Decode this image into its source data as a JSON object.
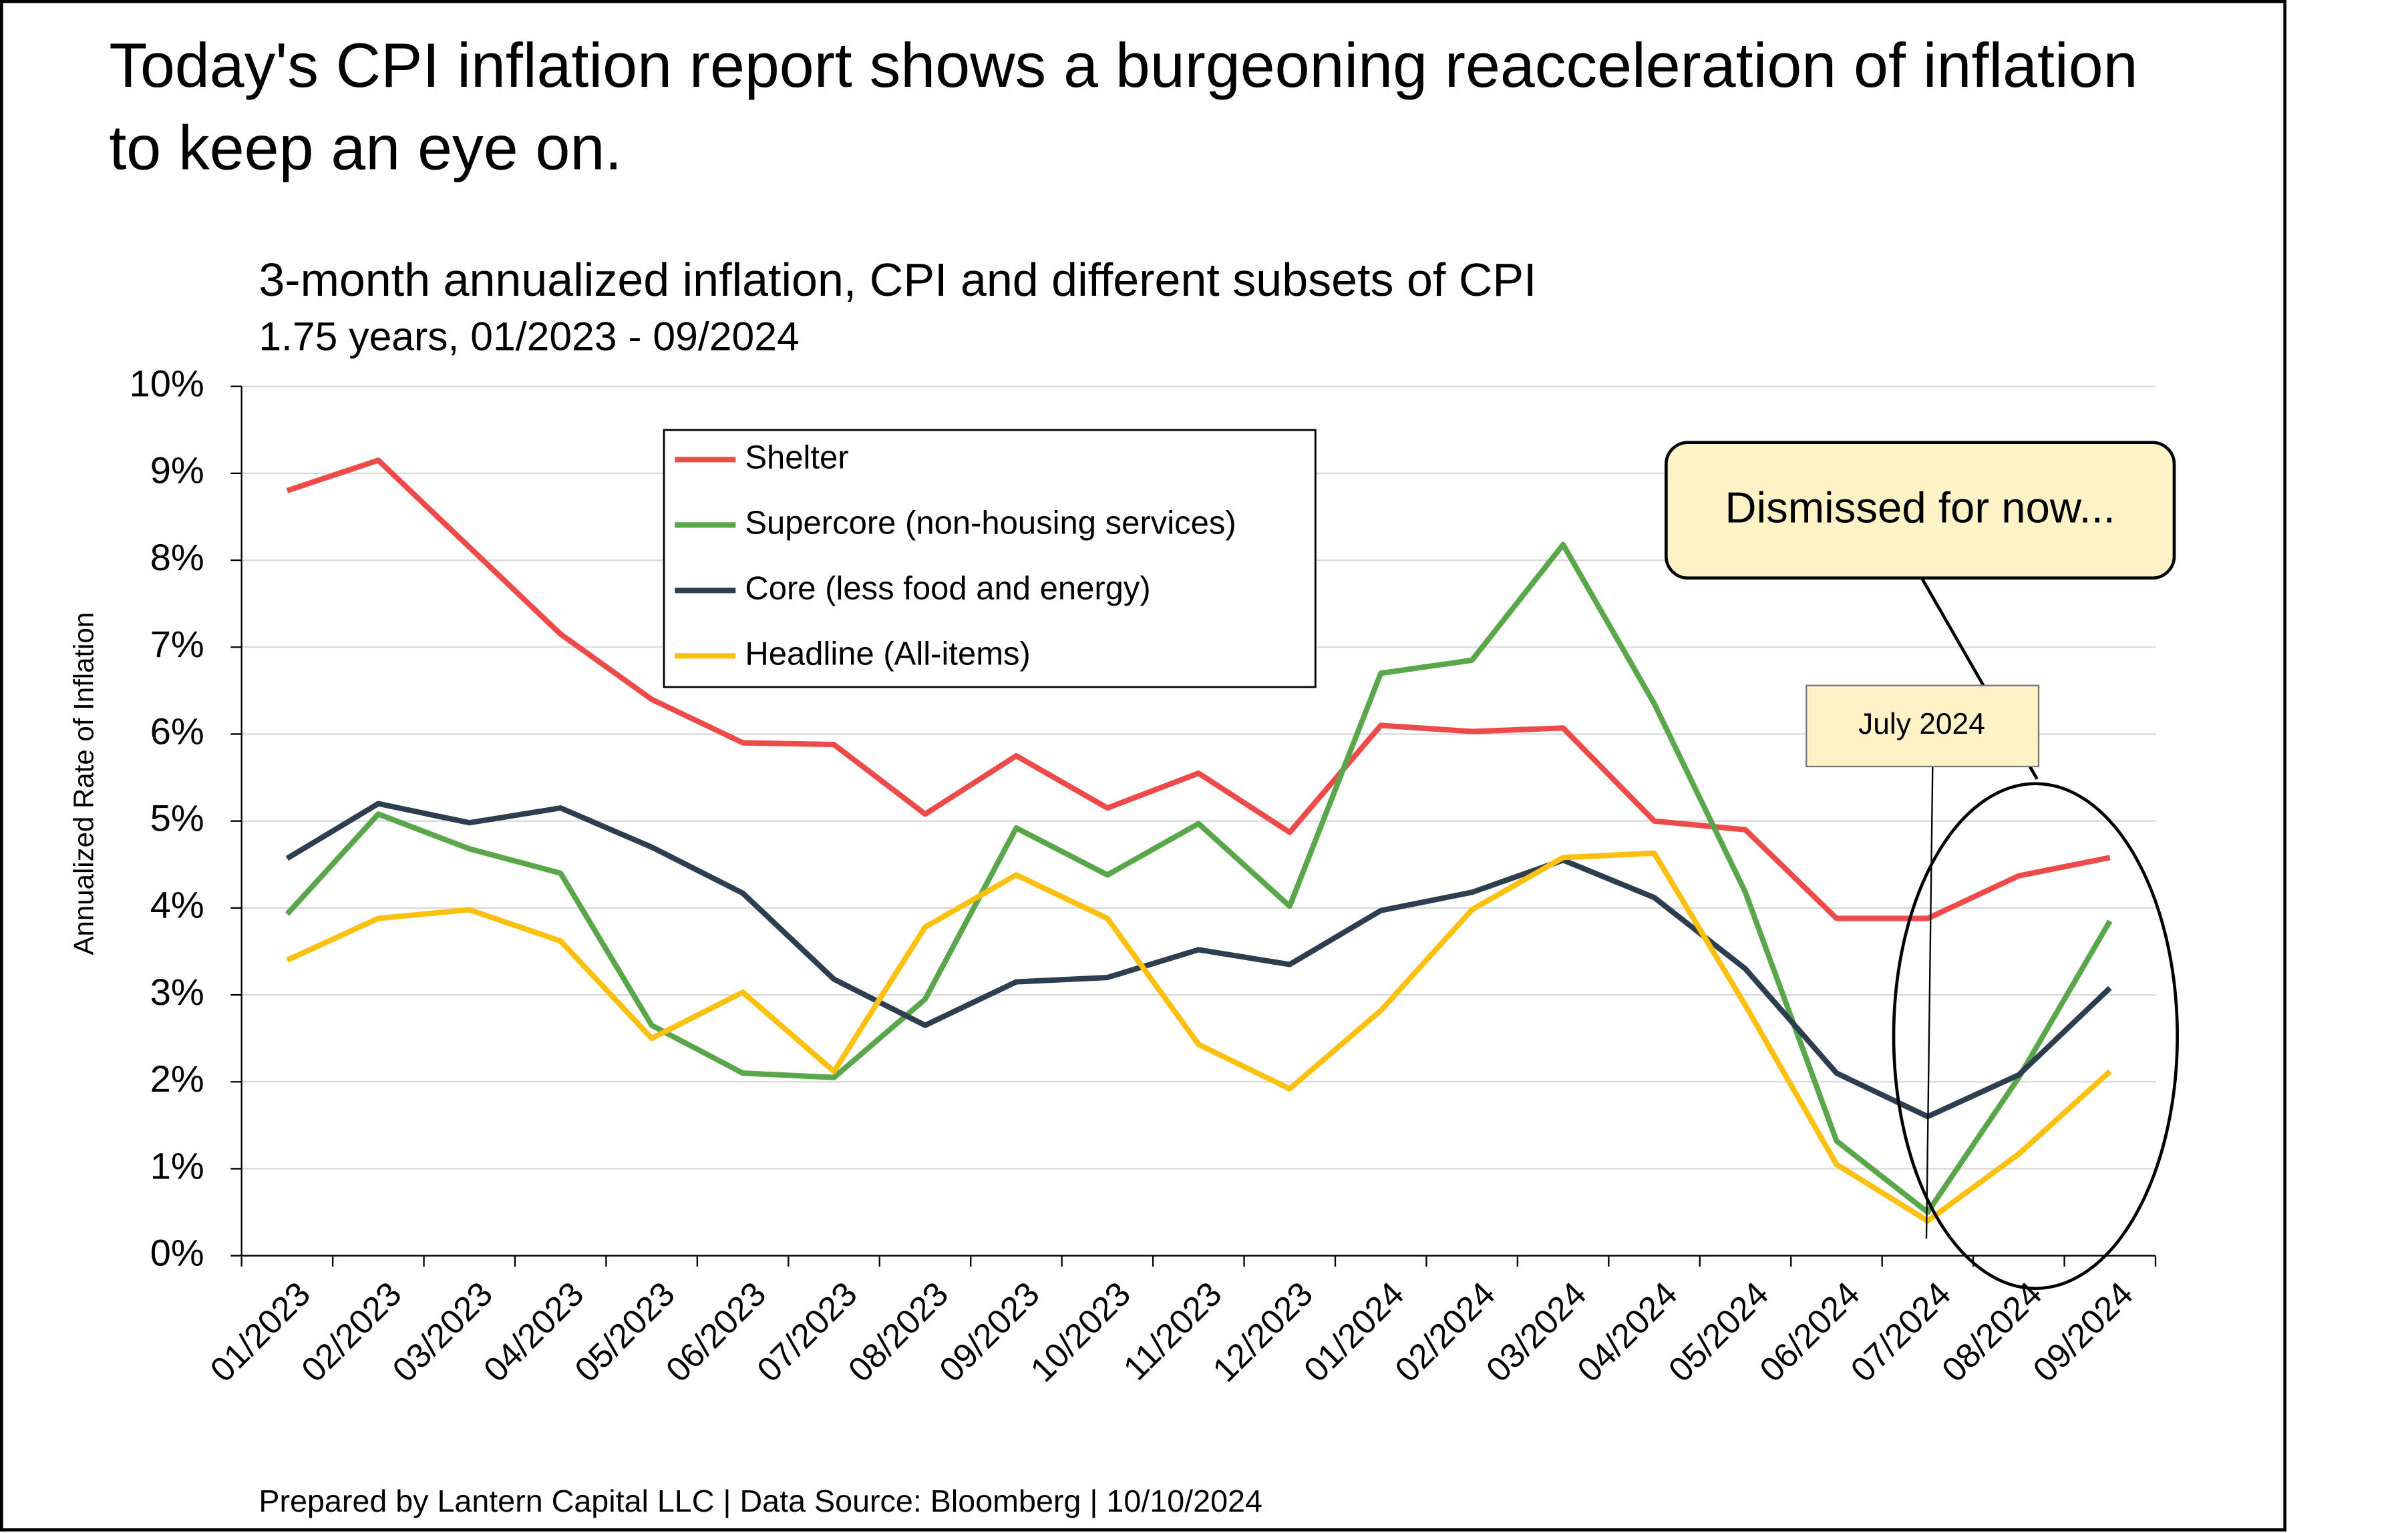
{
  "chart_data": {
    "type": "line",
    "title": "Today's CPI inflation report shows a burgeoning reacceleration of inflation to keep an eye on.",
    "subtitle": "3-month annualized inflation, CPI and different subsets of CPI",
    "subtitle2": "1.75 years, 01/2023 - 09/2024",
    "y_label": "Annualized Rate of Inflation",
    "footer": "Prepared by Lantern Capital LLC | Data Source: Bloomberg | 10/10/2024",
    "annotations": [
      "Dismissed for now...",
      "July 2024"
    ],
    "categories": [
      "01/2023",
      "02/2023",
      "03/2023",
      "04/2023",
      "05/2023",
      "06/2023",
      "07/2023",
      "08/2023",
      "09/2023",
      "10/2023",
      "11/2023",
      "12/2023",
      "01/2024",
      "02/2024",
      "03/2024",
      "04/2024",
      "05/2024",
      "06/2024",
      "07/2024",
      "08/2024",
      "09/2024"
    ],
    "series": [
      {
        "name": "Shelter",
        "color": "#ef4a4a",
        "values": [
          8.8,
          9.15,
          8.15,
          7.15,
          6.4,
          5.9,
          5.88,
          5.08,
          5.75,
          5.15,
          5.55,
          4.87,
          6.1,
          6.03,
          6.07,
          5.0,
          4.9,
          3.88,
          3.88,
          4.37,
          4.58
        ]
      },
      {
        "name": "Supercore (non-housing services)",
        "color": "#5aa64a",
        "values": [
          3.93,
          5.08,
          4.68,
          4.4,
          2.65,
          2.1,
          2.05,
          2.95,
          4.92,
          4.38,
          4.97,
          4.02,
          6.7,
          6.85,
          8.18,
          6.35,
          4.18,
          1.32,
          0.5,
          2.05,
          3.85
        ]
      },
      {
        "name": "Core (less food and energy)",
        "color": "#2d3e50",
        "values": [
          4.57,
          5.2,
          4.98,
          5.15,
          4.7,
          4.17,
          3.18,
          2.65,
          3.15,
          3.2,
          3.52,
          3.35,
          3.97,
          4.18,
          4.55,
          4.12,
          3.3,
          2.1,
          1.6,
          2.08,
          3.08
        ]
      },
      {
        "name": "Headline (All-items)",
        "color": "#fcc010",
        "values": [
          3.4,
          3.88,
          3.98,
          3.62,
          2.5,
          3.03,
          2.12,
          3.78,
          4.38,
          3.88,
          2.43,
          1.92,
          2.82,
          3.98,
          4.58,
          4.63,
          2.88,
          1.05,
          0.4,
          1.17,
          2.12
        ]
      }
    ],
    "ylim": [
      0,
      10
    ],
    "yticks": [
      {
        "value": 0,
        "label": "0%"
      },
      {
        "value": 1,
        "label": "1%"
      },
      {
        "value": 2,
        "label": "2%"
      },
      {
        "value": 3,
        "label": "3%"
      },
      {
        "value": 4,
        "label": "4%"
      },
      {
        "value": 5,
        "label": "5%"
      },
      {
        "value": 6,
        "label": "6%"
      },
      {
        "value": 7,
        "label": "7%"
      },
      {
        "value": 8,
        "label": "8%"
      },
      {
        "value": 9,
        "label": "9%"
      },
      {
        "value": 10,
        "label": "10%"
      }
    ],
    "grid": true
  }
}
